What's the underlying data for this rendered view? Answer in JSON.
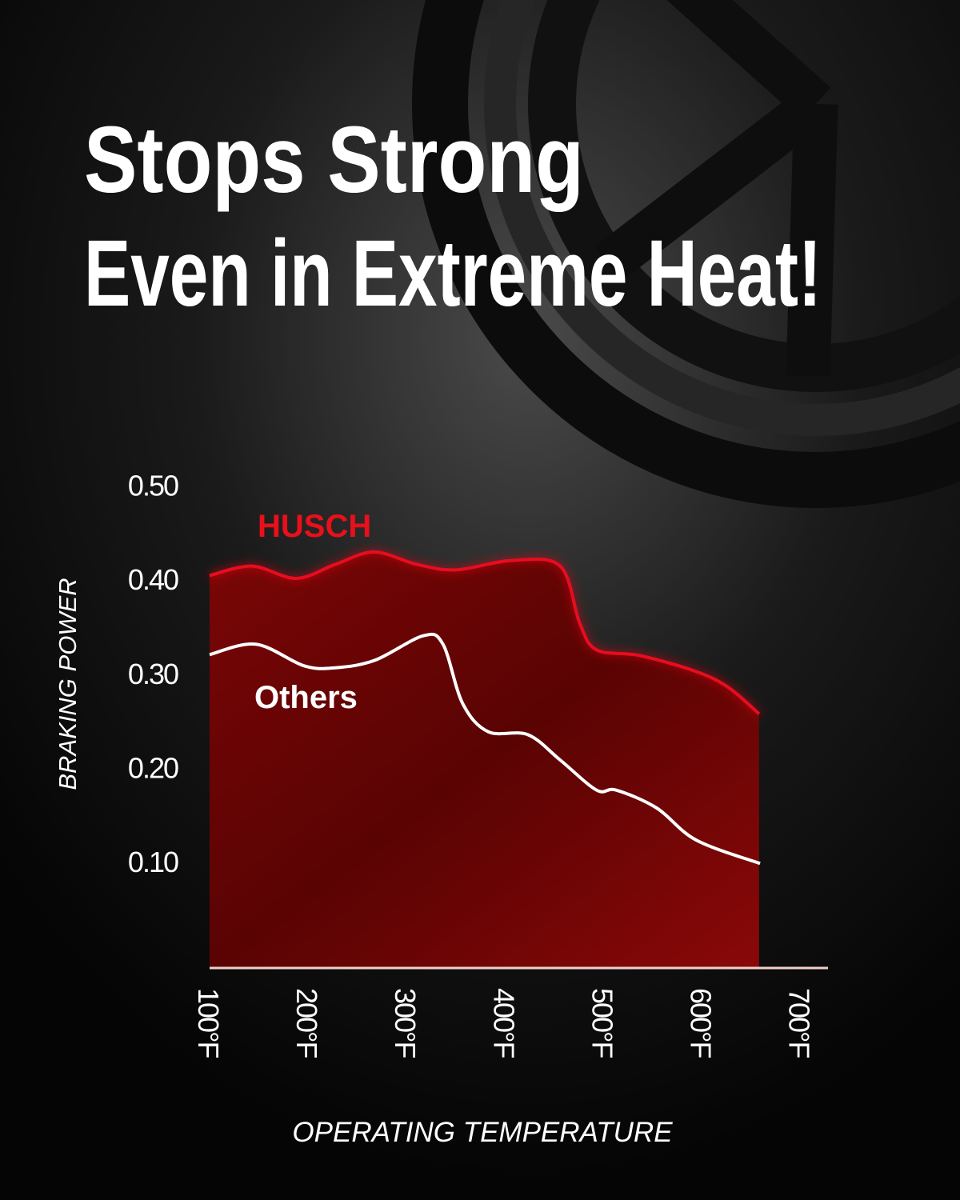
{
  "chart_data": {
    "type": "area",
    "title": "Stops Strong",
    "subtitle": "Even in Extreme Heat!",
    "x_label": "OPERATING TEMPERATURE",
    "y_label": "BRAKING POWER",
    "xlim": [
      100,
      728
    ],
    "ylim": [
      -0.013,
      0.548
    ],
    "xticks": [
      {
        "value": 100,
        "label": "100°F"
      },
      {
        "value": 200,
        "label": "200°F"
      },
      {
        "value": 300,
        "label": "300°F"
      },
      {
        "value": 400,
        "label": "400°F"
      },
      {
        "value": 500,
        "label": "500°F"
      },
      {
        "value": 600,
        "label": "600°F"
      },
      {
        "value": 700,
        "label": "700°F"
      }
    ],
    "yticks": [
      {
        "value": 0.1,
        "label": "0.10"
      },
      {
        "value": 0.2,
        "label": "0.20"
      },
      {
        "value": 0.3,
        "label": "0.30"
      },
      {
        "value": 0.4,
        "label": "0.40"
      },
      {
        "value": 0.5,
        "label": "0.50"
      }
    ],
    "series": [
      {
        "name": "HUSCH",
        "color": "#e8101a",
        "fill": true,
        "x": [
          100,
          143,
          188,
          228,
          267,
          310,
          350,
          407,
          456,
          476,
          493,
          537,
          594,
          627,
          658
        ],
        "values": [
          0.404,
          0.414,
          0.401,
          0.416,
          0.429,
          0.416,
          0.41,
          0.42,
          0.414,
          0.353,
          0.325,
          0.319,
          0.302,
          0.285,
          0.257
        ]
      },
      {
        "name": "Others",
        "color": "#ffffff",
        "fill": false,
        "x": [
          100,
          147,
          196,
          228,
          268,
          317,
          337,
          357,
          383,
          423,
          456,
          493,
          513,
          554,
          594,
          659
        ],
        "values": [
          0.32,
          0.331,
          0.308,
          0.306,
          0.314,
          0.34,
          0.331,
          0.268,
          0.238,
          0.235,
          0.208,
          0.176,
          0.176,
          0.157,
          0.123,
          0.098
        ]
      }
    ]
  }
}
